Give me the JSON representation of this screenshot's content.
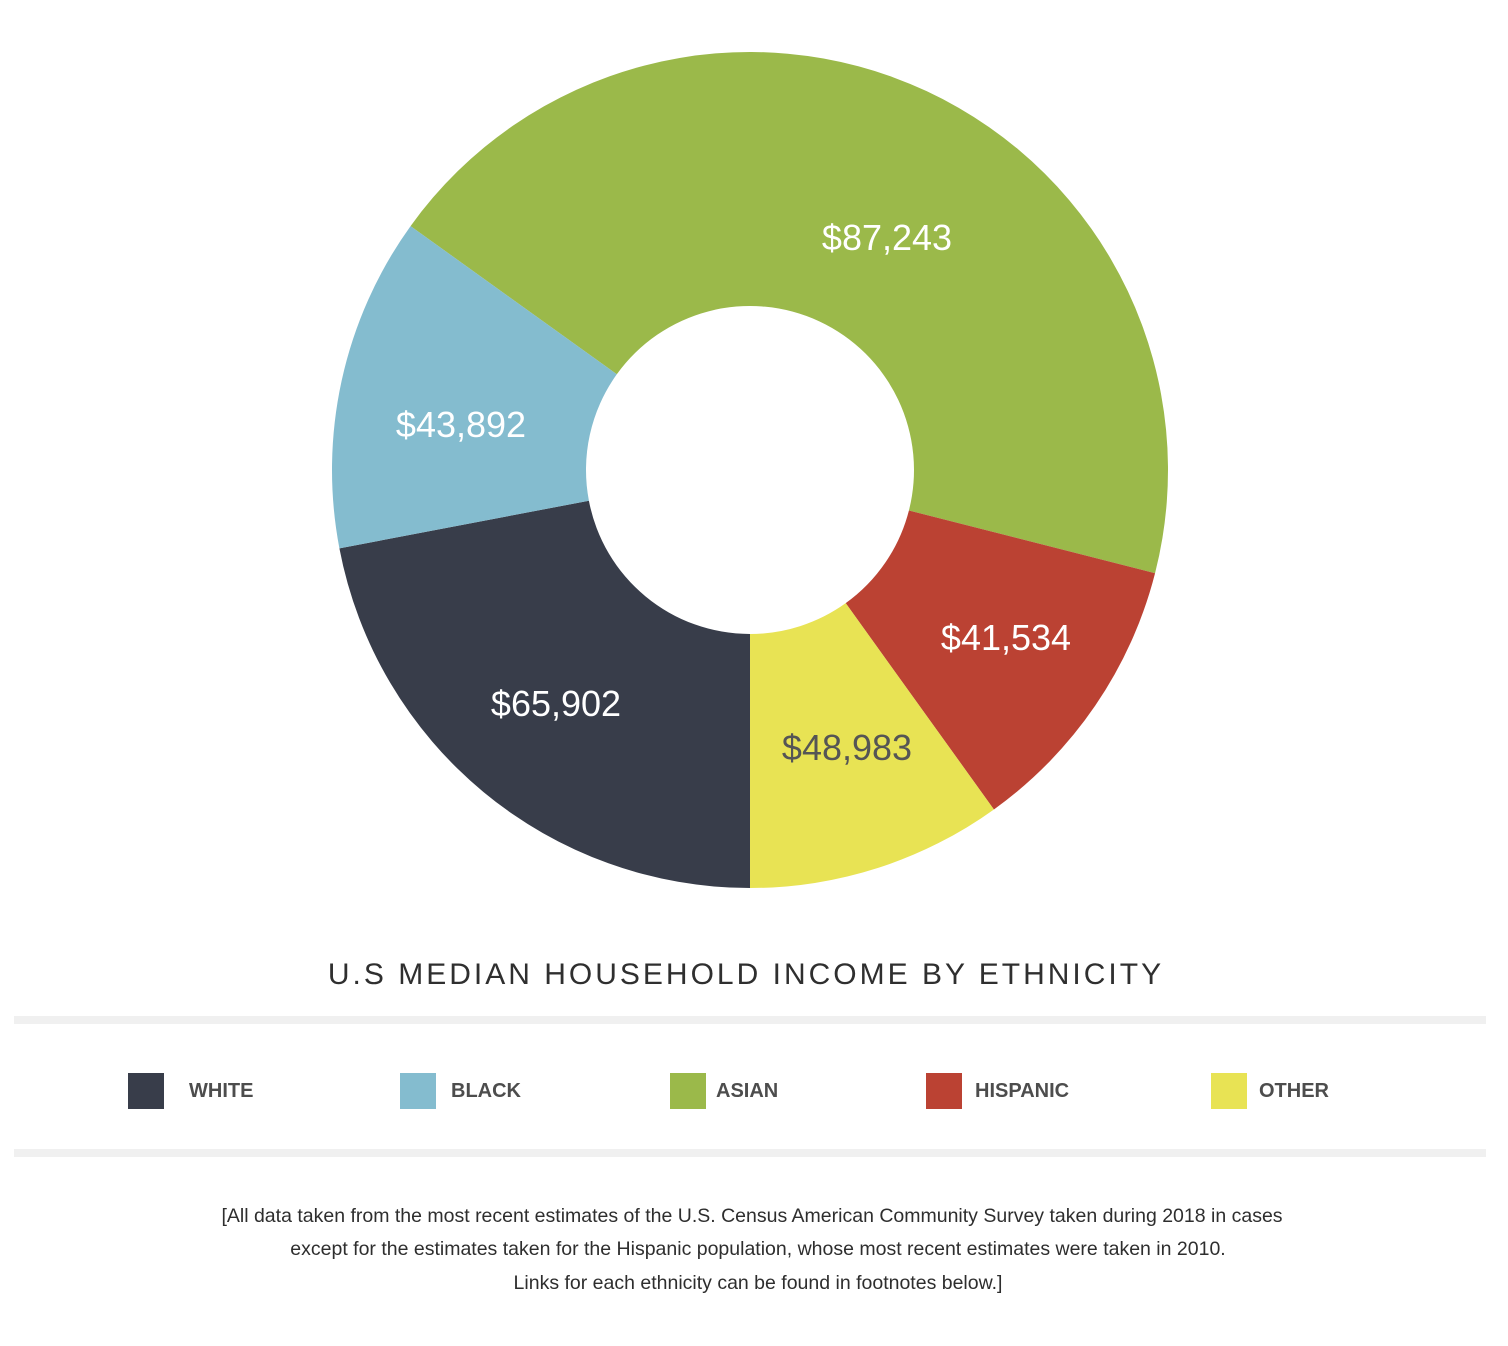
{
  "chart_data": {
    "type": "pie",
    "variant": "donut",
    "title": "U.S MEDIAN HOUSEHOLD INCOME BY ETHNICITY",
    "slices": [
      {
        "name": "ASIAN",
        "value": 87243,
        "label": "$87,243",
        "color": "#9bb94a",
        "label_color": "#ffffff"
      },
      {
        "name": "HISPANIC",
        "value": 41534,
        "label": "$41,534",
        "color": "#bb4233",
        "label_color": "#ffffff"
      },
      {
        "name": "OTHER",
        "value": 48983,
        "label": "$48,983",
        "color": "#e8e354",
        "label_color": "#555555"
      },
      {
        "name": "WHITE",
        "value": 65902,
        "label": "$65,902",
        "color": "#383d4a",
        "label_color": "#ffffff"
      },
      {
        "name": "BLACK",
        "value": 43892,
        "label": "$43,892",
        "color": "#84bccf",
        "label_color": "#ffffff"
      }
    ],
    "legend": [
      {
        "label": "WHITE",
        "color": "#383d4a"
      },
      {
        "label": "BLACK",
        "color": "#84bccf"
      },
      {
        "label": "ASIAN",
        "color": "#9bb94a"
      },
      {
        "label": "HISPANIC",
        "color": "#bb4233"
      },
      {
        "label": "OTHER",
        "color": "#e8e354"
      }
    ],
    "legend_position": "bottom"
  },
  "footnote": [
    "[All data taken from the most recent estimates of the U.S. Census American Community Survey taken during 2018 in cases",
    "except for the estimates taken for the Hispanic population, whose most recent estimates were taken in 2010.",
    "Links for each ethnicity can be found in footnotes below.]"
  ]
}
